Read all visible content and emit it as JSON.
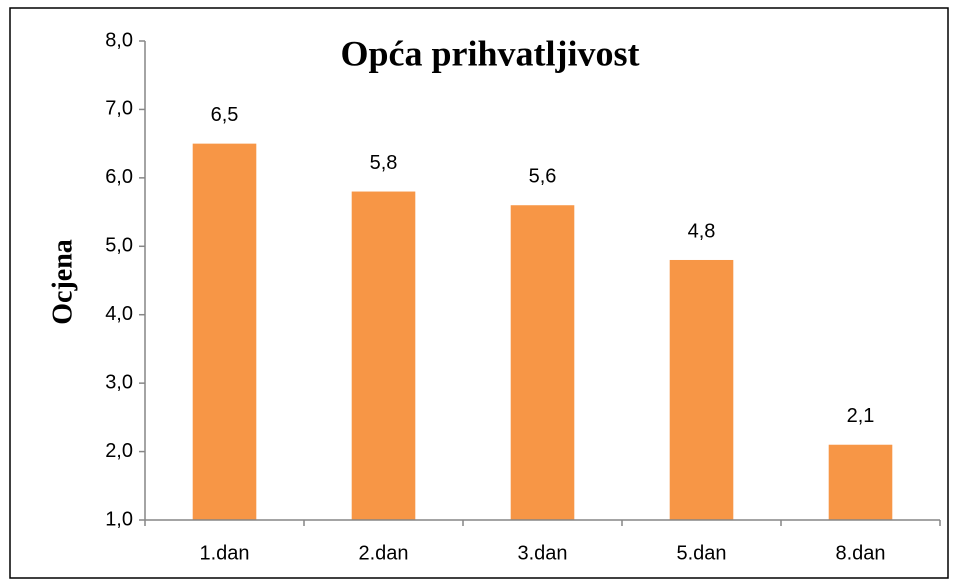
{
  "chart_data": {
    "type": "bar",
    "title": "Opća prihvatljivost",
    "y_label": "Ocjena",
    "categories": [
      "1.dan",
      "2.dan",
      "3.dan",
      "5.dan",
      "8.dan"
    ],
    "values": [
      6.5,
      5.8,
      5.6,
      4.8,
      2.1
    ],
    "value_labels": [
      "6,5",
      "5,8",
      "5,6",
      "4,8",
      "2,1"
    ],
    "color": "#f79646",
    "ylim": [
      1,
      8
    ],
    "yticks": [
      {
        "value": 1,
        "label": "1,0"
      },
      {
        "value": 2,
        "label": "2,0"
      },
      {
        "value": 3,
        "label": "3,0"
      },
      {
        "value": 4,
        "label": "4,0"
      },
      {
        "value": 5,
        "label": "5,0"
      },
      {
        "value": 6,
        "label": "6,0"
      },
      {
        "value": 7,
        "label": "7,0"
      },
      {
        "value": 8,
        "label": "8,0"
      }
    ],
    "grid": false
  }
}
